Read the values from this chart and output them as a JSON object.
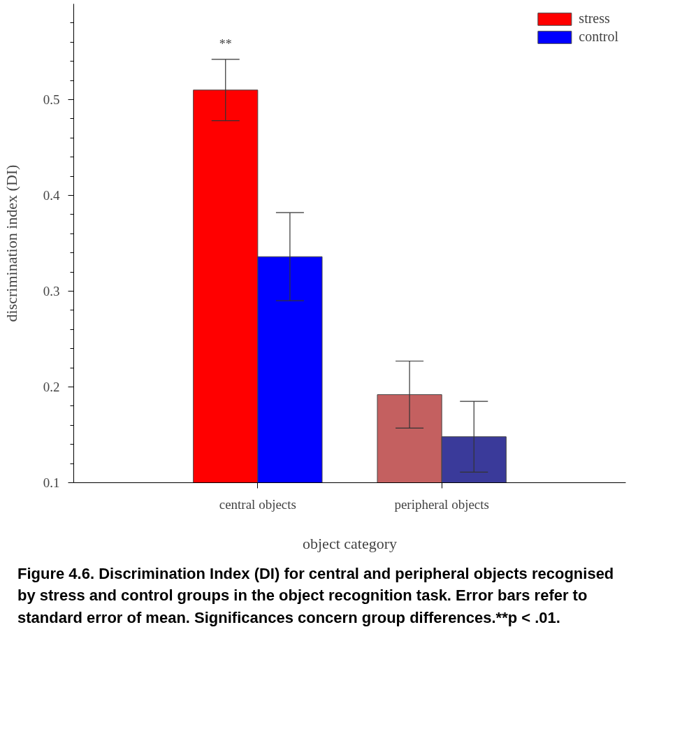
{
  "chart_data": {
    "type": "bar",
    "xlabel": "object category",
    "ylabel": "discrimination index (DI)",
    "categories": [
      "central objects",
      "peripheral objects"
    ],
    "series": [
      {
        "name": "stress",
        "color": "#ff0000",
        "colors": [
          "#ff0000",
          "#c46060"
        ],
        "values": [
          0.51,
          0.192
        ],
        "errors": [
          0.032,
          0.035
        ]
      },
      {
        "name": "control",
        "color": "#0000ff",
        "colors": [
          "#0000ff",
          "#3a3a9a"
        ],
        "values": [
          0.336,
          0.148
        ],
        "errors": [
          0.046,
          0.037
        ]
      }
    ],
    "ylim": [
      0.1,
      0.6
    ],
    "yticks": [
      0.1,
      {
        "value": 0.12,
        "label": null
      },
      {
        "value": 0.14,
        "label": null
      },
      {
        "value": 0.16,
        "label": null
      },
      {
        "value": 0.18,
        "label": null
      },
      0.2,
      {
        "value": 0.22,
        "label": null
      },
      {
        "value": 0.24,
        "label": null
      },
      {
        "value": 0.26,
        "label": null
      },
      {
        "value": 0.28,
        "label": null
      },
      0.3,
      {
        "value": 0.32,
        "label": null
      },
      {
        "value": 0.34,
        "label": null
      },
      {
        "value": 0.36,
        "label": null
      },
      {
        "value": 0.38,
        "label": null
      },
      0.4,
      {
        "value": 0.42,
        "label": null
      },
      {
        "value": 0.44,
        "label": null
      },
      {
        "value": 0.46,
        "label": null
      },
      {
        "value": 0.48,
        "label": null
      },
      0.5,
      {
        "value": 0.52,
        "label": null
      },
      {
        "value": 0.54,
        "label": null
      },
      {
        "value": 0.56,
        "label": null
      },
      {
        "value": 0.58,
        "label": null
      }
    ],
    "annotations": [
      "**",
      "Figure 4.6. Discrimination Index (DI) for central and peripheral objects recognised by stress and control groups in the object recognition task. Error bars refer to standard error of mean. Significances concern group differences.**p < .01."
    ],
    "legend": "top right",
    "grid": false
  }
}
